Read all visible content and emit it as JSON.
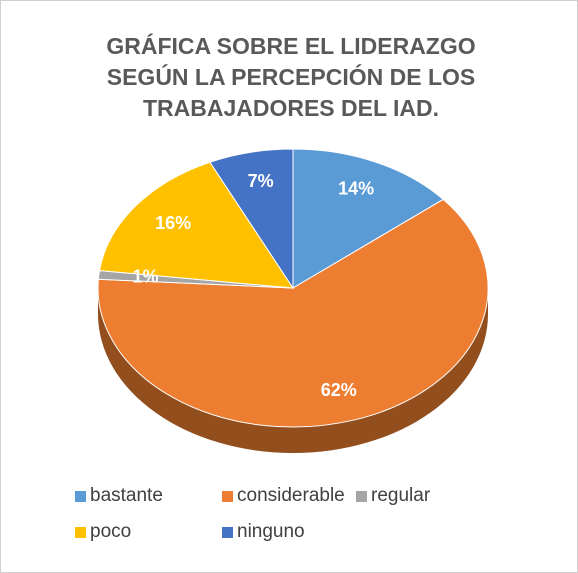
{
  "chart_data": {
    "type": "pie",
    "title": "GRÁFICA SOBRE EL LIDERAZGO SEGÚN LA PERCEPCIÓN DE LOS TRABAJADORES DEL IAD.",
    "categories": [
      "bastante",
      "considerable",
      "regular",
      "poco",
      "ninguno"
    ],
    "values": [
      14,
      62,
      1,
      16,
      7
    ],
    "value_labels": [
      "14%",
      "62%",
      "1%",
      "16%",
      "7%"
    ],
    "colors": [
      "#5b9bd5",
      "#ed7d31",
      "#a5a5a5",
      "#ffc000",
      "#4472c4"
    ]
  }
}
